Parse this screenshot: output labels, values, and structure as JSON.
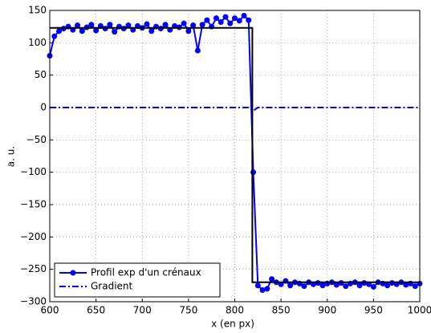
{
  "chart_data": {
    "type": "line",
    "xlabel": "x (en px)",
    "ylabel": "a. u.",
    "xlim": [
      600,
      1000
    ],
    "ylim": [
      -300,
      150
    ],
    "xticks": [
      600,
      650,
      700,
      750,
      800,
      850,
      900,
      950,
      1000
    ],
    "yticks": [
      150,
      100,
      50,
      0,
      {
        "value": -50,
        "label": "−50"
      },
      {
        "value": -100,
        "label": "−100"
      },
      {
        "value": -150,
        "label": "−150"
      },
      {
        "value": -200,
        "label": "−200"
      },
      {
        "value": -250,
        "label": "−250"
      },
      {
        "value": -300,
        "label": "−300"
      }
    ],
    "grid": true,
    "legend": "lower left",
    "x": [
      600,
      605,
      610,
      615,
      620,
      625,
      630,
      635,
      640,
      645,
      650,
      655,
      660,
      665,
      670,
      675,
      680,
      685,
      690,
      695,
      700,
      705,
      710,
      715,
      720,
      725,
      730,
      735,
      740,
      745,
      750,
      755,
      760,
      765,
      770,
      775,
      780,
      785,
      790,
      795,
      800,
      805,
      810,
      815,
      820,
      825,
      830,
      835,
      840,
      845,
      850,
      855,
      860,
      865,
      870,
      875,
      880,
      885,
      890,
      895,
      900,
      905,
      910,
      915,
      920,
      925,
      930,
      935,
      940,
      945,
      950,
      955,
      960,
      965,
      970,
      975,
      980,
      985,
      990,
      995,
      1000
    ],
    "series": [
      {
        "name": "Profil exp d'un crénaux",
        "color": "#0000ff",
        "marker": "circle",
        "dash": "solid",
        "values": [
          80,
          110,
          118,
          122,
          125,
          120,
          127,
          118,
          124,
          128,
          119,
          126,
          122,
          128,
          117,
          125,
          122,
          127,
          120,
          126,
          123,
          129,
          118,
          125,
          122,
          128,
          120,
          126,
          124,
          130,
          118,
          127,
          88,
          128,
          135,
          125,
          138,
          132,
          140,
          130,
          138,
          134,
          142,
          135,
          -100,
          -275,
          -282,
          -280,
          -265,
          -270,
          -273,
          -268,
          -275,
          -270,
          -272,
          -276,
          -270,
          -273,
          -271,
          -275,
          -272,
          -270,
          -274,
          -271,
          -276,
          -272,
          -270,
          -275,
          -271,
          -273,
          -277,
          -270,
          -272,
          -275,
          -271,
          -273,
          -270,
          -274,
          -272,
          -276,
          -272
        ]
      },
      {
        "name": "Gradient",
        "color": "#0000ff",
        "marker": "none",
        "dash": "dashdot",
        "values": [
          0,
          0,
          0,
          0,
          0,
          0,
          0,
          0,
          0,
          0,
          0,
          0,
          0,
          0,
          0,
          0,
          0,
          0,
          0,
          0,
          0,
          0,
          0,
          0,
          0,
          0,
          0,
          0,
          0,
          0,
          0,
          0,
          0,
          0,
          0,
          0,
          0,
          0,
          0,
          0,
          0,
          0,
          0,
          0,
          -5,
          0,
          0,
          0,
          0,
          0,
          0,
          0,
          0,
          0,
          0,
          0,
          0,
          0,
          0,
          0,
          0,
          0,
          0,
          0,
          0,
          0,
          0,
          0,
          0,
          0,
          0,
          0,
          0,
          0,
          0,
          0,
          0,
          0,
          0,
          0,
          0
        ]
      },
      {
        "color": "#000000",
        "marker": "none",
        "dash": "solid",
        "x": [
          600,
          819,
          819,
          1000
        ],
        "values": [
          123,
          123,
          -270,
          -270
        ]
      }
    ]
  }
}
